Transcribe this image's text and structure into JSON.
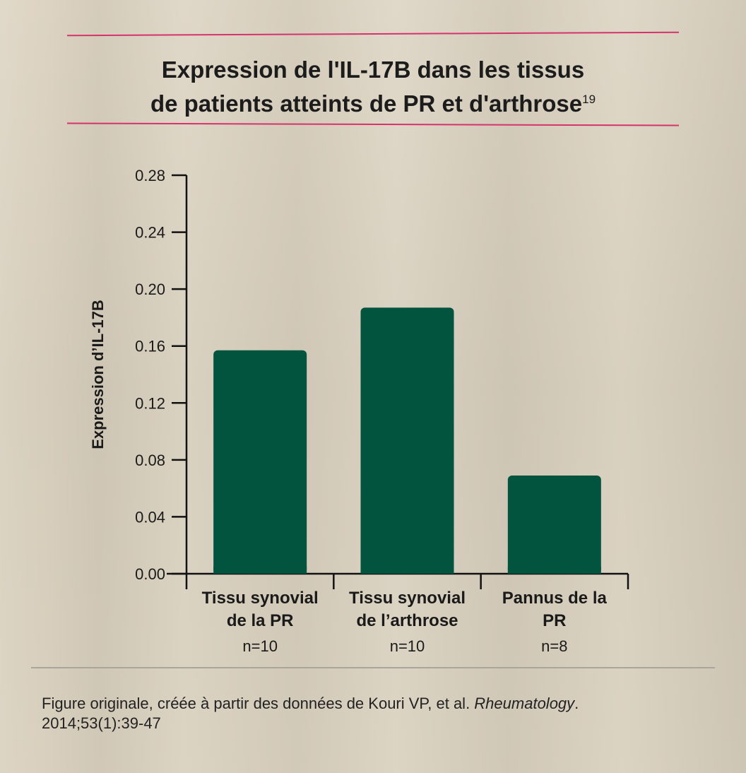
{
  "title": {
    "line1": "Expression de l'IL-17B dans les tissus",
    "line2": "de patients atteints de PR et d'arthrose",
    "superscript": "19"
  },
  "chart_data": {
    "type": "bar",
    "ylabel": "Expression d’IL-17B",
    "xlabel": "",
    "ylim": [
      0,
      0.28
    ],
    "yticks": [
      "0.00",
      "0.04",
      "0.08",
      "0.12",
      "0.16",
      "0.20",
      "0.24",
      "0.28"
    ],
    "categories": [
      [
        "Tissu synovial",
        "de la PR"
      ],
      [
        "Tissu synovial",
        "de l’arthrose"
      ],
      [
        "Pannus de la",
        "PR"
      ]
    ],
    "sample_sizes": [
      "n=10",
      "n=10",
      "n=8"
    ],
    "values": [
      0.157,
      0.187,
      0.069
    ],
    "bar_color": "#03543f",
    "grid": false
  },
  "footnote": {
    "text_before": "Figure originale, créée à partir des données de Kouri VP, et al. ",
    "journal": "Rheumatology",
    "text_after": ".",
    "line2": "2014;53(1):39-47"
  },
  "colors": {
    "accent_line": "#d6336c",
    "background": "#d9d0bf",
    "divider": "#a9a59c"
  }
}
